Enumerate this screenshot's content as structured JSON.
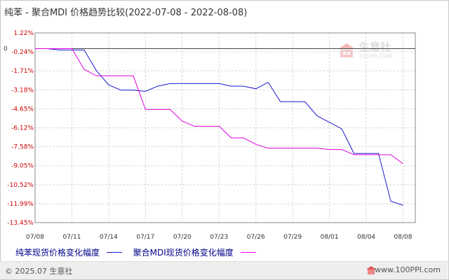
{
  "header": {
    "title": "纯苯 - 聚合MDI 价格趋势比较(2022-07-08 - 2022-08-08)"
  },
  "watermark": {
    "text": "生意社",
    "url": "100PPI.COM"
  },
  "legend": {
    "series_a": "纯苯现货价格变化幅度",
    "series_b": "聚合MDI现货价格变化幅度"
  },
  "footer": {
    "copyright": "© 2025.07 生意社",
    "site": "www.100PPI.com"
  },
  "colors": {
    "series_a": "#1a1acc",
    "series_b": "#e000e0",
    "tick_labels": "#cc0000",
    "grid": "#d8d8d8"
  },
  "chart_data": {
    "type": "line",
    "xlabel": "",
    "ylabel": "",
    "ylim": [
      -13.45,
      1.22
    ],
    "y_ticks": [
      "1.22%",
      "-0.24%",
      "-1.71%",
      "-3.18%",
      "-4.65%",
      "-6.12%",
      "-7.58%",
      "-9.05%",
      "-10.52%",
      "-11.99%",
      "-13.45%"
    ],
    "y_tick_values": [
      1.22,
      -0.24,
      -1.71,
      -3.18,
      -4.65,
      -6.12,
      -7.58,
      -9.05,
      -10.52,
      -11.99,
      -13.45
    ],
    "zero_label": "0",
    "x_tick_labels": [
      "07/08",
      "07/11",
      "07/14",
      "07/17",
      "07/20",
      "07/23",
      "07/26",
      "07/29",
      "08/01",
      "08/04",
      "08/08"
    ],
    "x_tick_days": [
      0,
      3,
      6,
      9,
      12,
      15,
      18,
      21,
      24,
      27,
      30
    ],
    "x_day_range": [
      0,
      31
    ],
    "grid": true,
    "legend_position": "bottom",
    "series": [
      {
        "name": "纯苯现货价格变化幅度",
        "color": "#1a1acc",
        "points": [
          [
            0,
            0
          ],
          [
            1,
            0
          ],
          [
            2,
            -0.1
          ],
          [
            3,
            -0.1
          ],
          [
            4,
            -0.1
          ],
          [
            5,
            -1.7
          ],
          [
            6,
            -2.8
          ],
          [
            7,
            -3.2
          ],
          [
            8,
            -3.2
          ],
          [
            9,
            -3.3
          ],
          [
            10,
            -2.9
          ],
          [
            11,
            -2.7
          ],
          [
            12,
            -2.7
          ],
          [
            13,
            -2.7
          ],
          [
            14,
            -2.7
          ],
          [
            15,
            -2.7
          ],
          [
            16,
            -2.9
          ],
          [
            17,
            -2.9
          ],
          [
            18,
            -3.1
          ],
          [
            19,
            -2.6
          ],
          [
            20,
            -4.1
          ],
          [
            21,
            -4.1
          ],
          [
            22,
            -4.1
          ],
          [
            23,
            -5.2
          ],
          [
            24,
            -5.7
          ],
          [
            25,
            -6.2
          ],
          [
            26,
            -8.1
          ],
          [
            27,
            -8.1
          ],
          [
            28,
            -8.1
          ],
          [
            29,
            -11.8
          ],
          [
            30,
            -12.1
          ]
        ]
      },
      {
        "name": "聚合MDI现货价格变化幅度",
        "color": "#e000e0",
        "points": [
          [
            0,
            0
          ],
          [
            1,
            0
          ],
          [
            2,
            0
          ],
          [
            3,
            0
          ],
          [
            4,
            -1.6
          ],
          [
            5,
            -2.1
          ],
          [
            6,
            -2.1
          ],
          [
            7,
            -2.1
          ],
          [
            8,
            -2.1
          ],
          [
            9,
            -4.7
          ],
          [
            10,
            -4.7
          ],
          [
            11,
            -4.7
          ],
          [
            12,
            -5.6
          ],
          [
            13,
            -6.0
          ],
          [
            14,
            -6.0
          ],
          [
            15,
            -6.0
          ],
          [
            16,
            -6.9
          ],
          [
            17,
            -6.9
          ],
          [
            18,
            -7.4
          ],
          [
            19,
            -7.7
          ],
          [
            20,
            -7.7
          ],
          [
            21,
            -7.7
          ],
          [
            22,
            -7.7
          ],
          [
            23,
            -7.7
          ],
          [
            24,
            -7.8
          ],
          [
            25,
            -7.8
          ],
          [
            26,
            -8.2
          ],
          [
            27,
            -8.2
          ],
          [
            28,
            -8.2
          ],
          [
            29,
            -8.2
          ],
          [
            30,
            -8.9
          ]
        ]
      }
    ]
  }
}
